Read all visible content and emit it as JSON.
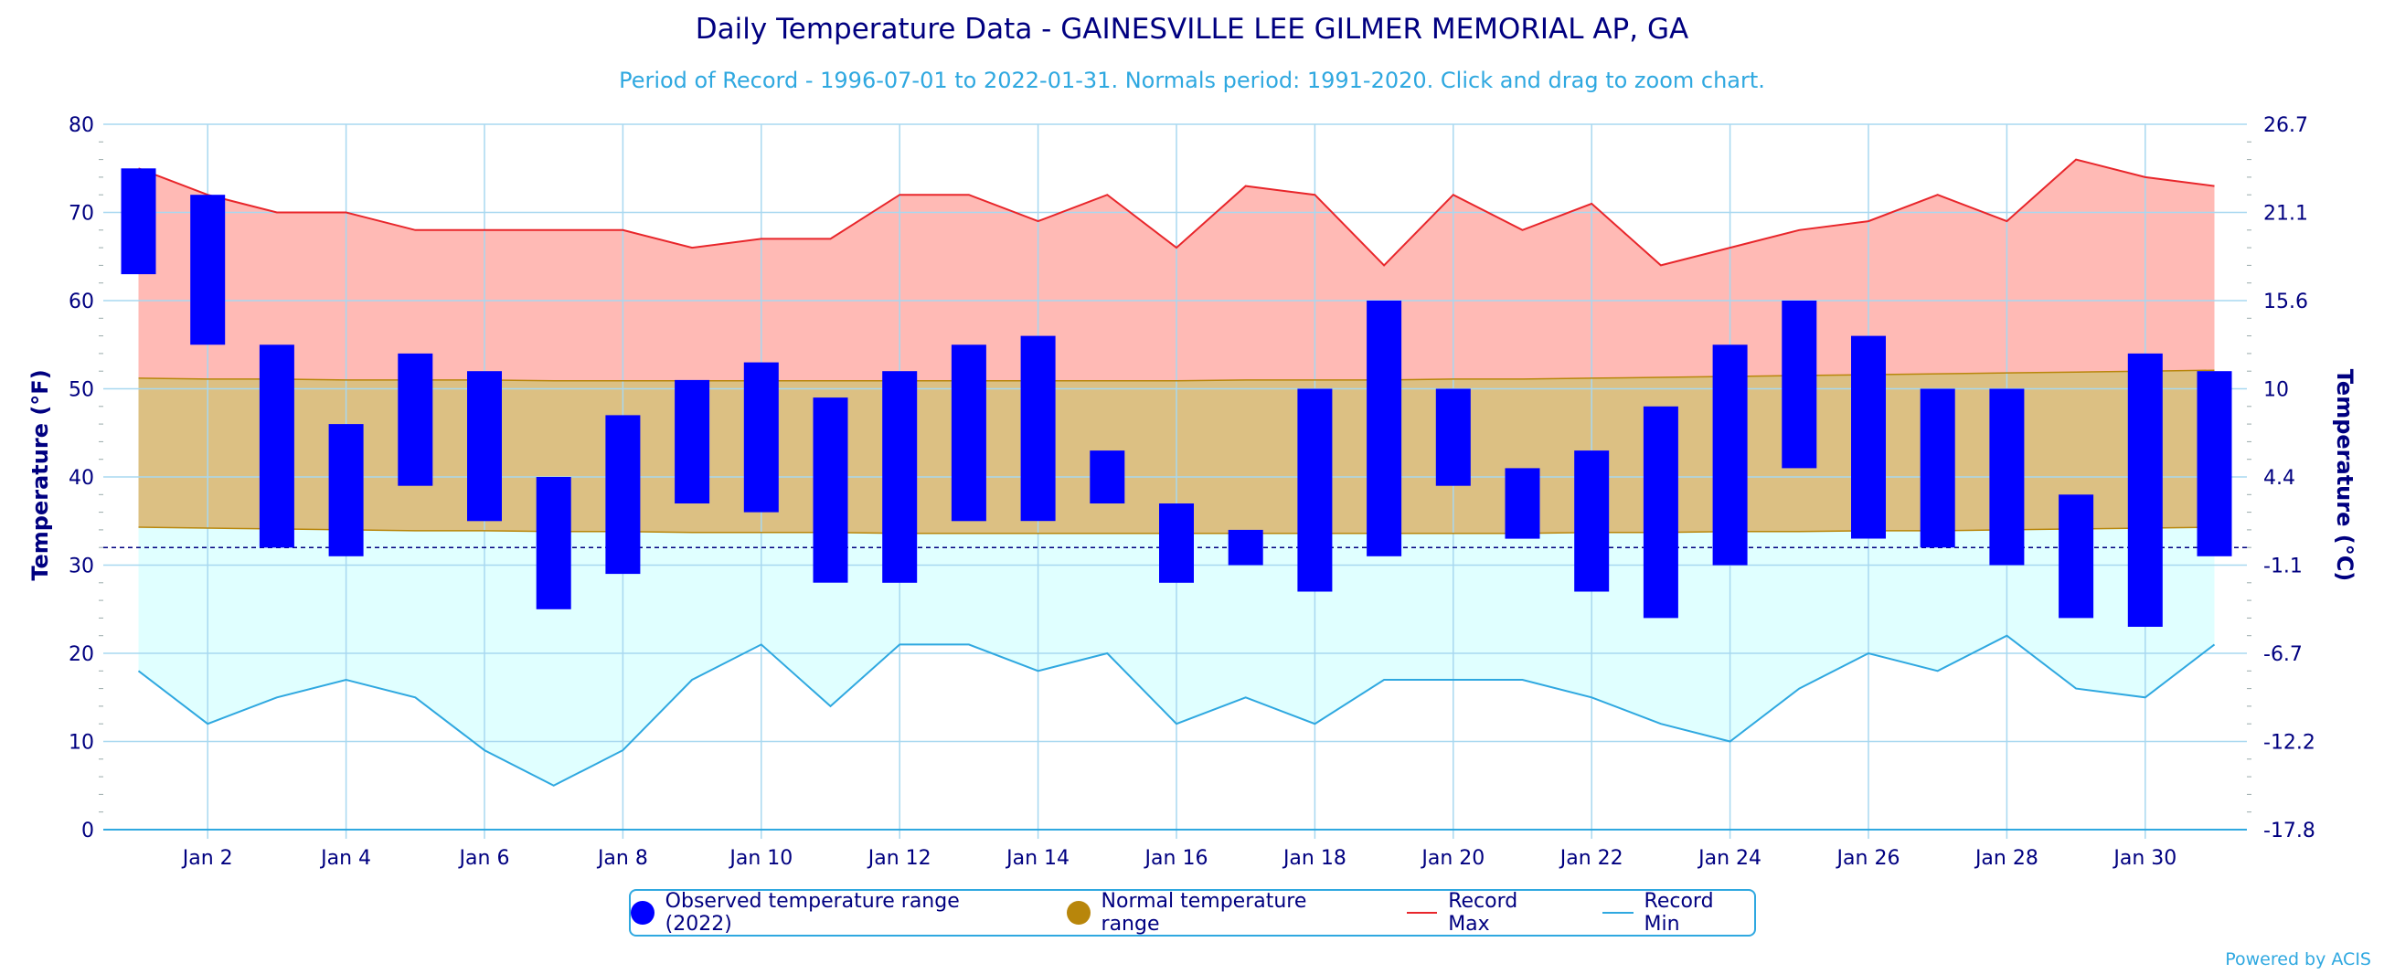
{
  "title": "Daily Temperature Data - GAINESVILLE LEE GILMER MEMORIAL AP, GA",
  "subtitle": "Period of Record - 1996-07-01 to 2022-01-31. Normals period: 1991-2020. Click and drag to zoom chart.",
  "credit": "Powered by ACIS",
  "colors": {
    "observed": "#0000ff",
    "normal_fill": "#dcc083",
    "normal_line": "#b8860b",
    "record_max_fill": "#ffbab5",
    "record_max_line": "#e8262b",
    "record_min_fill": "#e0ffff",
    "record_min_line": "#2fa8e0",
    "grid": "#a8d8f0",
    "axis_text": "#000080",
    "freeze_line": "#000080"
  },
  "legend": [
    {
      "label": "Observed temperature range (2022)",
      "symbol": "dot",
      "color": "#0000ff"
    },
    {
      "label": "Normal temperature range",
      "symbol": "dot",
      "color": "#b8860b"
    },
    {
      "label": "Record Max",
      "symbol": "line",
      "color": "#e8262b"
    },
    {
      "label": "Record Min",
      "symbol": "line",
      "color": "#2fa8e0"
    }
  ],
  "chart_data": {
    "type": "bar",
    "title": "Daily Temperature Data - GAINESVILLE LEE GILMER MEMORIAL AP, GA",
    "subtitle": "Period of Record - 1996-07-01 to 2022-01-31. Normals period: 1991-2020. Click and drag to zoom chart.",
    "ylabel": "Temperature (°F)",
    "y2label": "Temperature (°C)",
    "ylim": [
      0,
      80
    ],
    "yticks": [
      0,
      10,
      20,
      30,
      40,
      50,
      60,
      70,
      80
    ],
    "y2ticks": [
      "-17.8",
      "-12.2",
      "-6.7",
      "-1.1",
      "4.4",
      "10",
      "15.6",
      "21.1",
      "26.7"
    ],
    "xlim": [
      1,
      31
    ],
    "xticks": [
      {
        "day": 2,
        "label": "Jan 2"
      },
      {
        "day": 4,
        "label": "Jan 4"
      },
      {
        "day": 6,
        "label": "Jan 6"
      },
      {
        "day": 8,
        "label": "Jan 8"
      },
      {
        "day": 10,
        "label": "Jan 10"
      },
      {
        "day": 12,
        "label": "Jan 12"
      },
      {
        "day": 14,
        "label": "Jan 14"
      },
      {
        "day": 16,
        "label": "Jan 16"
      },
      {
        "day": 18,
        "label": "Jan 18"
      },
      {
        "day": 20,
        "label": "Jan 20"
      },
      {
        "day": 22,
        "label": "Jan 22"
      },
      {
        "day": 24,
        "label": "Jan 24"
      },
      {
        "day": 26,
        "label": "Jan 26"
      },
      {
        "day": 28,
        "label": "Jan 28"
      },
      {
        "day": 30,
        "label": "Jan 30"
      }
    ],
    "freezing_line": 32,
    "grid": true,
    "legend_position": "bottom-center",
    "x": [
      1,
      2,
      3,
      4,
      5,
      6,
      7,
      8,
      9,
      10,
      11,
      12,
      13,
      14,
      15,
      16,
      17,
      18,
      19,
      20,
      21,
      22,
      23,
      24,
      25,
      26,
      27,
      28,
      29,
      30,
      31
    ],
    "series": [
      {
        "name": "Observed temperature range (2022)",
        "type": "columnrange",
        "low": [
          63,
          55,
          32,
          31,
          39,
          35,
          25,
          29,
          37,
          36,
          28,
          28,
          35,
          35,
          37,
          28,
          30,
          27,
          31,
          39,
          33,
          27,
          24,
          30,
          41,
          33,
          32,
          30,
          24,
          23,
          31
        ],
        "high": [
          75,
          72,
          55,
          46,
          54,
          52,
          40,
          47,
          51,
          53,
          49,
          52,
          55,
          56,
          43,
          37,
          34,
          50,
          60,
          50,
          41,
          43,
          48,
          55,
          60,
          56,
          50,
          50,
          38,
          54,
          52
        ]
      },
      {
        "name": "Normal temperature range",
        "type": "arearange",
        "low": [
          34.3,
          34.2,
          34.1,
          34.0,
          33.9,
          33.9,
          33.8,
          33.8,
          33.7,
          33.7,
          33.7,
          33.6,
          33.6,
          33.6,
          33.6,
          33.6,
          33.6,
          33.6,
          33.6,
          33.6,
          33.6,
          33.7,
          33.7,
          33.8,
          33.8,
          33.9,
          33.9,
          34.0,
          34.1,
          34.2,
          34.3
        ],
        "high": [
          51.2,
          51.1,
          51.1,
          51.0,
          51.0,
          51.0,
          50.9,
          50.9,
          50.9,
          50.9,
          50.9,
          50.9,
          50.9,
          50.9,
          50.9,
          50.9,
          51.0,
          51.0,
          51.0,
          51.1,
          51.1,
          51.2,
          51.3,
          51.4,
          51.5,
          51.6,
          51.7,
          51.8,
          51.9,
          52.0,
          52.1
        ]
      },
      {
        "name": "Record Max",
        "type": "line",
        "values": [
          75,
          72,
          70,
          70,
          68,
          68,
          68,
          68,
          66,
          67,
          67,
          72,
          72,
          69,
          72,
          66,
          73,
          72,
          64,
          72,
          68,
          71,
          64,
          66,
          68,
          69,
          72,
          69,
          76,
          74,
          73
        ]
      },
      {
        "name": "Record Min",
        "type": "line",
        "values": [
          18,
          12,
          15,
          17,
          15,
          9,
          5,
          9,
          17,
          21,
          14,
          21,
          21,
          18,
          20,
          12,
          15,
          12,
          17,
          17,
          17,
          15,
          12,
          10,
          16,
          20,
          18,
          22,
          16,
          15,
          21
        ]
      }
    ]
  }
}
